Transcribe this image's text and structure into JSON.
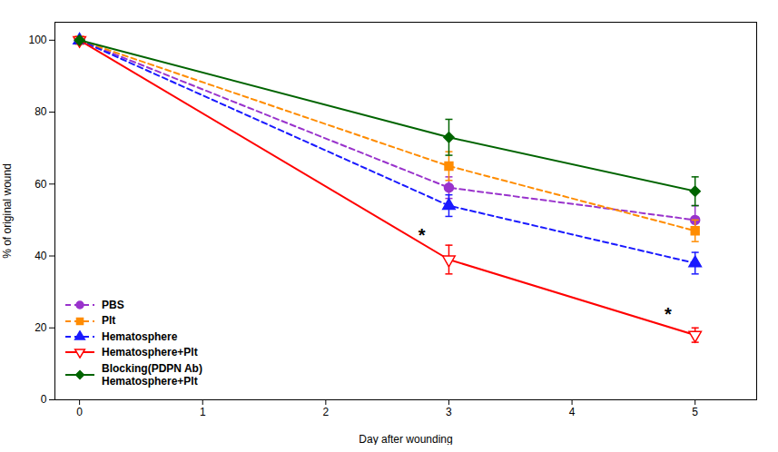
{
  "chart_data": {
    "type": "line",
    "xlabel": "Day after wounding",
    "ylabel": "% of original wound",
    "x": [
      0,
      3,
      5
    ],
    "series": [
      {
        "name": "PBS",
        "color": "#9933CC",
        "values": [
          100,
          59,
          50
        ],
        "yerr": [
          0,
          3,
          4
        ],
        "marker": "circle",
        "line_style": "dashed"
      },
      {
        "name": "Plt",
        "color": "#FF8C00",
        "values": [
          100,
          65,
          47
        ],
        "yerr": [
          0,
          4,
          3
        ],
        "marker": "square",
        "line_style": "dashed"
      },
      {
        "name": "Hematosphere",
        "color": "#1a1aff",
        "values": [
          100,
          54,
          38
        ],
        "yerr": [
          0,
          3,
          3
        ],
        "marker": "triangle-up",
        "line_style": "dashed"
      },
      {
        "name": "Hematosphere+Plt",
        "color": "#FF0000",
        "values": [
          100,
          39,
          18
        ],
        "yerr": [
          0,
          4,
          2
        ],
        "marker": "triangle-down-open",
        "line_style": "solid"
      },
      {
        "name": "Blocking(PDPN Ab)\nHematosphere+Plt",
        "color": "#006400",
        "values": [
          100,
          73,
          58
        ],
        "yerr": [
          0,
          5,
          4
        ],
        "marker": "diamond",
        "line_style": "solid"
      }
    ],
    "xlim": [
      -0.2,
      5.5
    ],
    "ylim": [
      0,
      105
    ],
    "xticks": [
      0,
      1,
      2,
      3,
      4,
      5
    ],
    "yticks": [
      0,
      20,
      40,
      60,
      80,
      100
    ],
    "grid": false,
    "legend": "lower left",
    "annotations": [
      {
        "text": "*",
        "x": 2.78,
        "y": 44
      },
      {
        "text": "*",
        "x": 4.78,
        "y": 22
      }
    ]
  }
}
